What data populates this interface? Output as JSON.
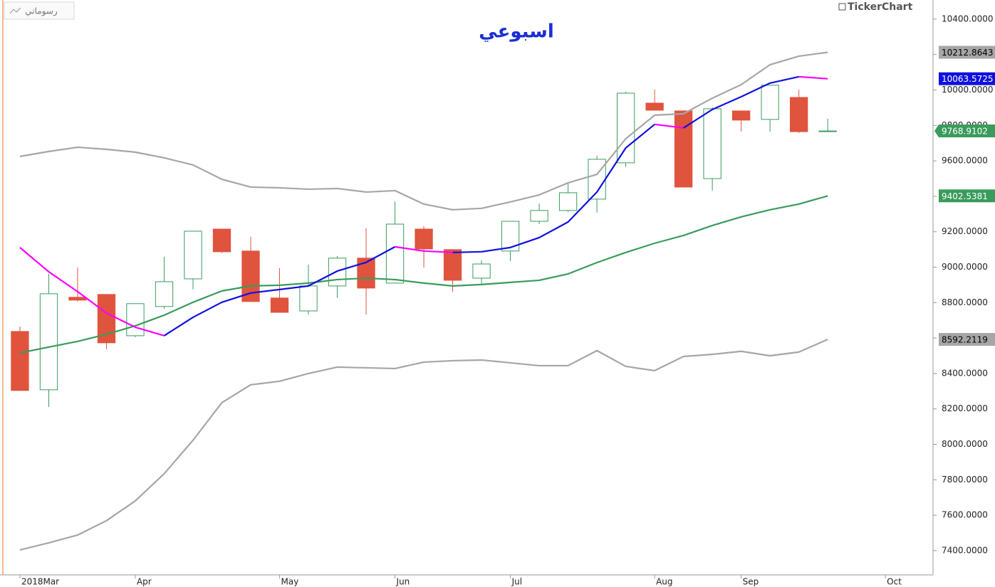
{
  "chart_data": {
    "type": "candlestick",
    "title": "اسبوعي",
    "brand": "TickerChart",
    "button_label": "رسوماتي",
    "x": [
      0,
      1,
      2,
      3,
      4,
      5,
      6,
      7,
      8,
      9,
      10,
      11,
      12,
      13,
      14,
      15,
      16,
      17,
      18,
      19,
      20,
      21,
      22,
      23,
      24,
      25,
      26,
      27,
      28
    ],
    "open": [
      8637,
      8308,
      8830,
      8846,
      8613,
      8778,
      8934,
      9215,
      9091,
      8826,
      8753,
      8894,
      9051,
      8910,
      9215,
      9099,
      8938,
      9091,
      9259,
      9320,
      9384,
      9589,
      9926,
      9882,
      9500,
      9882,
      9834,
      9958,
      9767
    ],
    "high": [
      8665,
      8962,
      8998,
      8846,
      8794,
      9059,
      9203,
      9215,
      9171,
      8994,
      9014,
      9063,
      9219,
      9372,
      9231,
      9099,
      9039,
      9259,
      9360,
      9472,
      9629,
      9990,
      10002,
      9882,
      9902,
      9882,
      10027,
      10002,
      9838
    ],
    "low": [
      8304,
      8211,
      8806,
      8537,
      8605,
      8766,
      8874,
      9079,
      8806,
      8745,
      8733,
      8826,
      8733,
      8910,
      8998,
      8862,
      8906,
      9035,
      9243,
      9312,
      9308,
      9565,
      9886,
      9452,
      9432,
      9765,
      9765,
      9757,
      9765
    ],
    "close": [
      8304,
      8850,
      8814,
      8573,
      8794,
      8918,
      9203,
      9087,
      8806,
      8745,
      8894,
      9051,
      8882,
      9243,
      9103,
      8926,
      9018,
      9259,
      9320,
      9420,
      9609,
      9982,
      9886,
      9452,
      9894,
      9830,
      10027,
      9765,
      9768.9102
    ],
    "up_color": "#3a9b5c",
    "down_color": "#e0533d",
    "overlays": [
      {
        "color": "#a6a6a6",
        "label_text_color": "#000000",
        "values": [
          9625,
          9653,
          9677,
          9665,
          9649,
          9617,
          9577,
          9496,
          9452,
          9448,
          9440,
          9444,
          9424,
          9432,
          9356,
          9324,
          9332,
          9368,
          9408,
          9476,
          9524,
          9725,
          9858,
          9866,
          9954,
          10030,
          10143,
          10191,
          10212.8643
        ]
      },
      {
        "color": "#a6a6a6",
        "label_text_color": "#000000",
        "values": [
          7404,
          7444,
          7488,
          7569,
          7681,
          7834,
          8023,
          8235,
          8336,
          8356,
          8400,
          8436,
          8432,
          8428,
          8464,
          8472,
          8476,
          8460,
          8444,
          8444,
          8529,
          8440,
          8416,
          8496,
          8508,
          8525,
          8500,
          8521,
          8592.2119
        ]
      },
      {
        "color": "#3a9b5c",
        "label_text_color": "#ffffff",
        "values": [
          8516,
          8549,
          8581,
          8621,
          8669,
          8729,
          8802,
          8866,
          8894,
          8898,
          8910,
          8930,
          8938,
          8930,
          8910,
          8894,
          8902,
          8914,
          8926,
          8962,
          9026,
          9083,
          9135,
          9179,
          9235,
          9284,
          9324,
          9356,
          9402.5381
        ]
      },
      {
        "color": "#1010e0",
        "down_color": "#ff00ff",
        "label_text_color": "#ffffff",
        "values": [
          9111,
          8974,
          8862,
          8741,
          8661,
          8613,
          8717,
          8802,
          8854,
          8874,
          8894,
          8978,
          9027,
          9115,
          9091,
          9083,
          9087,
          9111,
          9167,
          9255,
          9424,
          9673,
          9806,
          9786,
          9890,
          9962,
          10039,
          10075,
          10063.5725
        ]
      }
    ],
    "xlim": [
      -0.69,
      31.65
    ],
    "xticks": [
      {
        "value": 0,
        "label": "2018Mar"
      },
      {
        "value": 4,
        "label": "Apr"
      },
      {
        "value": 9,
        "label": "May"
      },
      {
        "value": 13,
        "label": "Jun"
      },
      {
        "value": 17,
        "label": "Jul"
      },
      {
        "value": 22,
        "label": "Aug"
      },
      {
        "value": 25,
        "label": "Sep"
      },
      {
        "value": 30,
        "label": "Oct"
      }
    ],
    "ylim": [
      7263,
      10508
    ],
    "yticks": [
      {
        "value": 7400,
        "label": "7400.0000"
      },
      {
        "value": 7600,
        "label": "7600.0000"
      },
      {
        "value": 7800,
        "label": "7800.0000"
      },
      {
        "value": 8000,
        "label": "8000.0000"
      },
      {
        "value": 8200,
        "label": "8200.0000"
      },
      {
        "value": 8400,
        "label": "8400.0000"
      },
      {
        "value": 8600,
        "label": "8600.0000"
      },
      {
        "value": 8800,
        "label": "8800.0000"
      },
      {
        "value": 9000,
        "label": "9000.0000"
      },
      {
        "value": 9200,
        "label": "9200.0000"
      },
      {
        "value": 9400,
        "label": "9400.0000"
      },
      {
        "value": 9600,
        "label": "9600.0000"
      },
      {
        "value": 9800,
        "label": "9800.0000"
      },
      {
        "value": 10000,
        "label": "10000.0000"
      },
      {
        "value": 10200,
        "label": "10200.0000"
      },
      {
        "value": 10400,
        "label": "10400.0000"
      }
    ]
  }
}
